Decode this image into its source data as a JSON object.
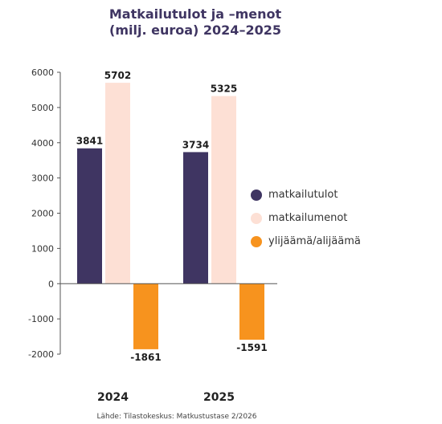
{
  "title_lines": [
    "Matkailutulot ja –menot",
    "(milj. euroa) 2024–2025"
  ],
  "source": "Lähde: Tilastokeskus: Matkustustase 2/2026",
  "chart_data": {
    "type": "bar",
    "categories": [
      "2024",
      "2025"
    ],
    "series": [
      {
        "name": "matkailutulot",
        "color": "#3f3562",
        "values": [
          3841,
          3734
        ]
      },
      {
        "name": "matkailumenot",
        "color": "#fde0d5",
        "values": [
          5702,
          5325
        ]
      },
      {
        "name": "ylijäämä/alijäämä",
        "color": "#f7931e",
        "values": [
          -1861,
          -1591
        ]
      }
    ],
    "ylim": [
      -2000,
      6000
    ],
    "yticks": [
      6000,
      5000,
      4000,
      3000,
      2000,
      1000,
      0,
      -1000,
      -2000
    ],
    "legend": "right",
    "grid": false
  }
}
